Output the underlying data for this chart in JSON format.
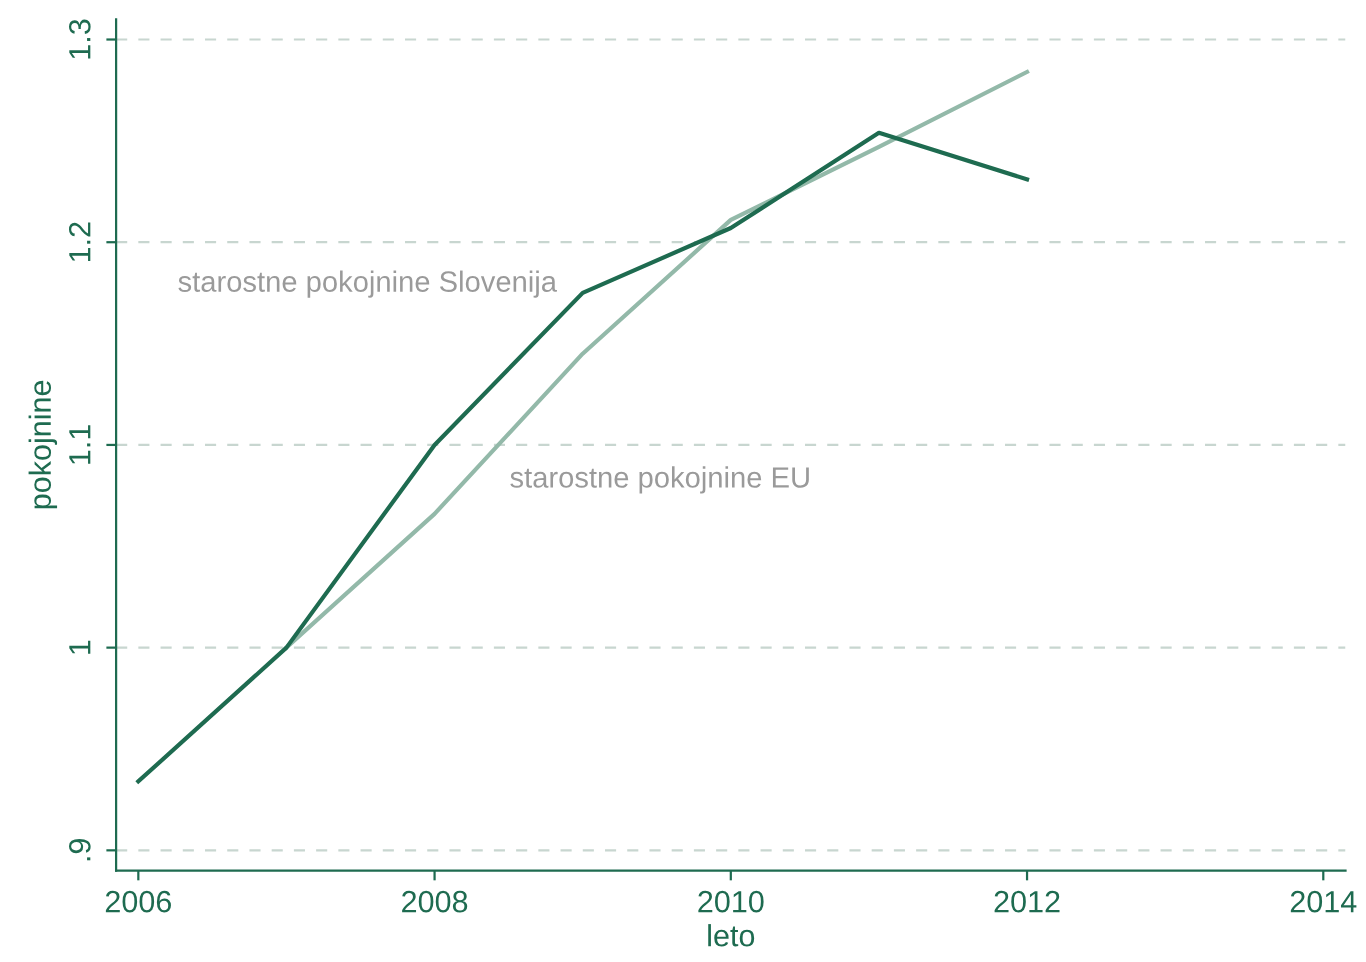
{
  "chart_data": {
    "type": "line",
    "xlabel": "leto",
    "ylabel": "pokojnine",
    "x": [
      2006,
      2007,
      2008,
      2009,
      2010,
      2011,
      2012
    ],
    "series": [
      {
        "name": "starostne pokojnine Slovenija",
        "color": "#1e6b50",
        "values": [
          0.934,
          1.0,
          1.1,
          1.175,
          1.207,
          1.254,
          1.231
        ]
      },
      {
        "name": "starostne pokojnine EU",
        "color": "#93b9a9",
        "values": [
          null,
          1.0,
          1.066,
          1.145,
          1.211,
          1.247,
          1.284
        ]
      }
    ],
    "xlim": [
      2005.85,
      2014.15
    ],
    "ylim": [
      0.89,
      1.31
    ],
    "xticks": [
      2006,
      2008,
      2010,
      2012,
      2014
    ],
    "yticks": [
      {
        "value": 0.9,
        "label": ".9"
      },
      1,
      1.1,
      1.2,
      1.3
    ],
    "grid": "y",
    "line_style": "solid",
    "marker": "none",
    "legend": false
  }
}
